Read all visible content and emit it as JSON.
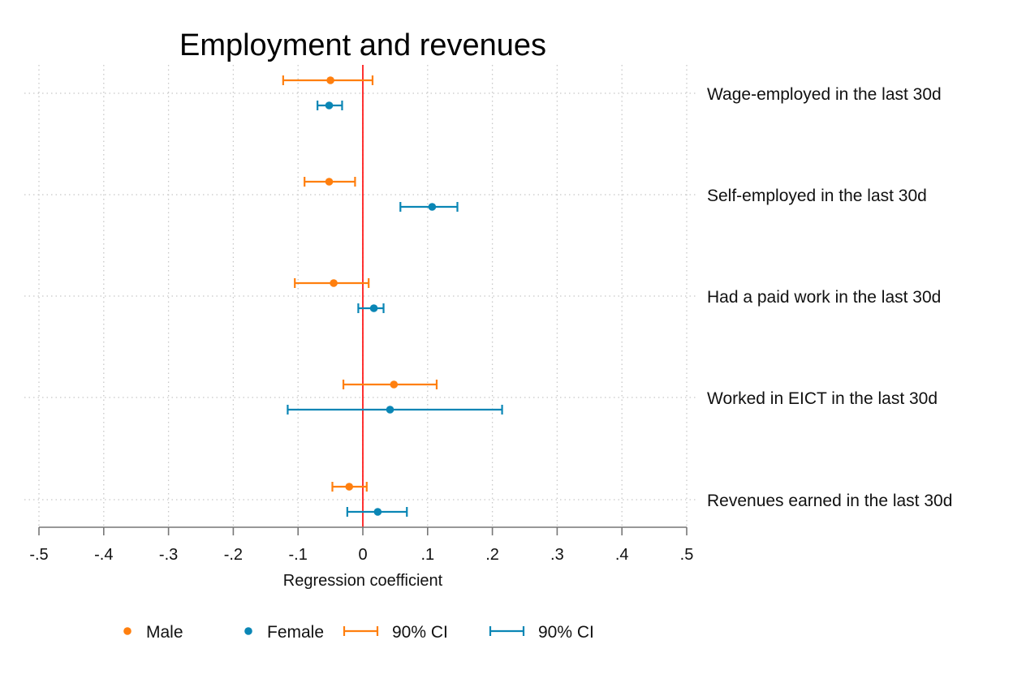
{
  "chart_data": {
    "type": "coefficient-plot",
    "title": "Employment and revenues",
    "xlabel": "Regression coefficient",
    "xlim": [
      -0.5,
      0.5
    ],
    "xticks": [
      -0.5,
      -0.4,
      -0.3,
      -0.2,
      -0.1,
      0,
      0.1,
      0.2,
      0.3,
      0.4,
      0.5
    ],
    "xtick_labels": [
      "-.5",
      "-.4",
      "-.3",
      "-.2",
      "-.1",
      "0",
      ".1",
      ".2",
      ".3",
      ".4",
      ".5"
    ],
    "reference_line": {
      "x": 0,
      "color": "#ff0000"
    },
    "grid": true,
    "legend_position": "bottom",
    "categories": [
      "Wage-employed in the last 30d",
      "Self-employed in the last 30d",
      "Had a paid work in the last 30d",
      "Worked in EICT in the last 30d",
      "Revenues earned in the last 30d"
    ],
    "series": [
      {
        "name": "Male",
        "ci_label": "90% CI",
        "color": "#ff7f0e",
        "estimates": [
          -0.05,
          -0.052,
          -0.045,
          0.048,
          -0.021
        ],
        "ci_low": [
          -0.123,
          -0.09,
          -0.105,
          -0.03,
          -0.047
        ],
        "ci_high": [
          0.015,
          -0.012,
          0.009,
          0.114,
          0.006
        ]
      },
      {
        "name": "Female",
        "ci_label": "90% CI",
        "color": "#0a86b5",
        "estimates": [
          -0.052,
          0.107,
          0.017,
          0.042,
          0.023
        ],
        "ci_low": [
          -0.07,
          0.058,
          -0.007,
          -0.116,
          -0.024
        ],
        "ci_high": [
          -0.032,
          0.146,
          0.032,
          0.215,
          0.068
        ]
      }
    ]
  }
}
